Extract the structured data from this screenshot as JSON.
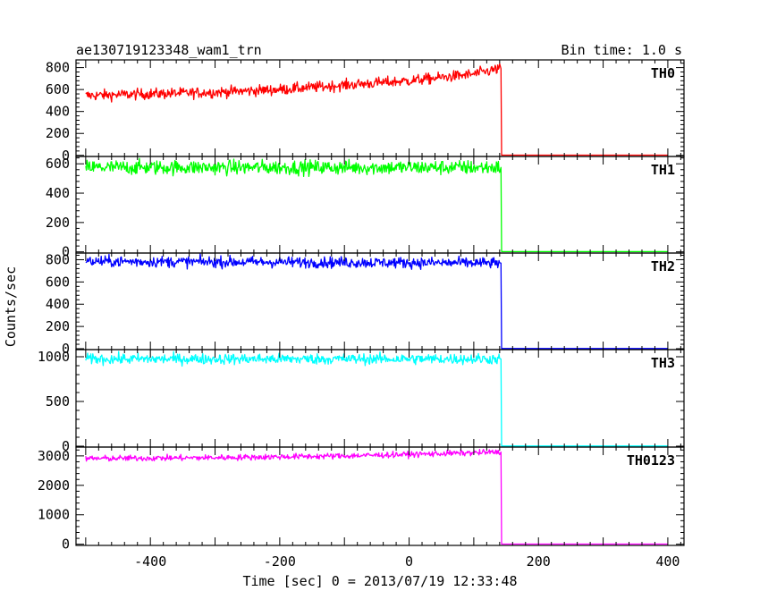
{
  "chart_data": {
    "type": "line",
    "title": "ae130719123348_wam1_trn",
    "subtitle": "Bin time: 1.0 s",
    "xlabel": "Time [sec] 0 = 2013/07/19 12:33:48",
    "ylabel": "Counts/sec",
    "xlim": [
      -515,
      425
    ],
    "x_ticks": [
      -400,
      -200,
      0,
      200,
      400
    ],
    "cutoff_x": 143,
    "panels": [
      {
        "name": "TH0",
        "color": "#ff0000",
        "ylim": [
          -10,
          870
        ],
        "y_ticks": [
          0,
          200,
          400,
          600,
          800
        ],
        "trend_x": [
          -500,
          -300,
          -200,
          -100,
          0,
          100,
          140
        ],
        "trend_y": [
          545,
          575,
          600,
          640,
          680,
          740,
          790
        ],
        "noise": 25,
        "after_value": 2
      },
      {
        "name": "TH1",
        "color": "#00ff00",
        "ylim": [
          -8,
          650
        ],
        "y_ticks": [
          0,
          200,
          400,
          600
        ],
        "trend_x": [
          -500,
          140
        ],
        "trend_y": [
          575,
          575
        ],
        "noise": 25,
        "after_value": 2
      },
      {
        "name": "TH2",
        "color": "#0000ff",
        "ylim": [
          -8,
          860
        ],
        "y_ticks": [
          0,
          200,
          400,
          600,
          800
        ],
        "trend_x": [
          -500,
          140
        ],
        "trend_y": [
          785,
          770
        ],
        "noise": 25,
        "after_value": 2
      },
      {
        "name": "TH3",
        "color": "#00ffff",
        "ylim": [
          -10,
          1080
        ],
        "y_ticks": [
          0,
          500,
          1000
        ],
        "trend_x": [
          -500,
          140
        ],
        "trend_y": [
          975,
          975
        ],
        "noise": 30,
        "after_value": 2
      },
      {
        "name": "TH0123",
        "color": "#ff00ff",
        "ylim": [
          -40,
          3300
        ],
        "y_ticks": [
          0,
          1000,
          2000,
          3000
        ],
        "trend_x": [
          -500,
          -300,
          -100,
          0,
          140
        ],
        "trend_y": [
          2910,
          2940,
          3000,
          3050,
          3130
        ],
        "noise": 50,
        "after_value": 5
      }
    ]
  }
}
